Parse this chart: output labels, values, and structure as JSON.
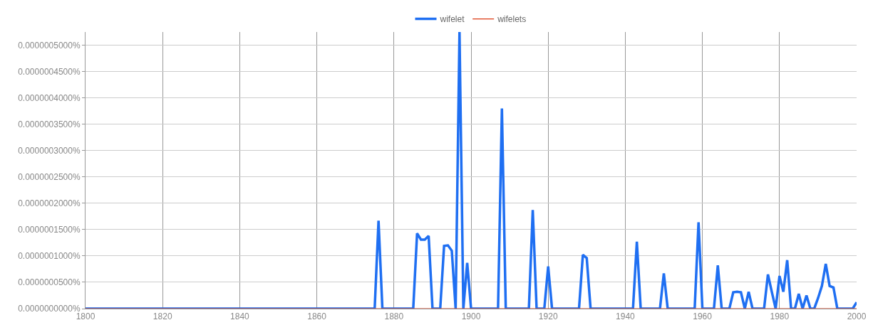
{
  "chart_data": {
    "type": "line",
    "legend": "top",
    "grid": true,
    "marker": "none",
    "line_style": "solid",
    "xlim": [
      1800,
      2000
    ],
    "xticks": [
      1800,
      1820,
      1840,
      1860,
      1880,
      1900,
      1920,
      1940,
      1960,
      1980,
      2000
    ],
    "ylim": [
      0,
      5.25e-07
    ],
    "yticks": [
      {
        "value": 0,
        "label": "0.0000000000%"
      },
      {
        "value": 5e-08,
        "label": "0.0000000500%"
      },
      {
        "value": 1e-07,
        "label": "0.0000001000%"
      },
      {
        "value": 1.5e-07,
        "label": "0.0000001500%"
      },
      {
        "value": 2e-07,
        "label": "0.0000002000%"
      },
      {
        "value": 2.5e-07,
        "label": "0.0000002500%"
      },
      {
        "value": 3e-07,
        "label": "0.0000003000%"
      },
      {
        "value": 3.5e-07,
        "label": "0.0000003500%"
      },
      {
        "value": 4e-07,
        "label": "0.0000004000%"
      },
      {
        "value": 4.5e-07,
        "label": "0.0000004500%"
      },
      {
        "value": 5e-07,
        "label": "0.0000005000%"
      }
    ],
    "series": [
      {
        "name": "wifelet",
        "color": "#1f6ff2",
        "x": [
          1800,
          1875,
          1876,
          1877,
          1885,
          1886,
          1887,
          1888,
          1889,
          1890,
          1892,
          1893,
          1894,
          1895,
          1896,
          1897,
          1898,
          1899,
          1900,
          1907,
          1908,
          1909,
          1915,
          1916,
          1917,
          1919,
          1920,
          1921,
          1928,
          1929,
          1930,
          1931,
          1942,
          1943,
          1944,
          1949,
          1950,
          1951,
          1958,
          1959,
          1960,
          1963,
          1964,
          1965,
          1967,
          1968,
          1969,
          1970,
          1971,
          1972,
          1973,
          1976,
          1977,
          1978,
          1979,
          1980,
          1981,
          1982,
          1983,
          1984,
          1985,
          1986,
          1987,
          1988,
          1989,
          1990,
          1991,
          1992,
          1993,
          1994,
          1995,
          1999,
          2000
        ],
        "values": [
          0,
          0,
          1.67e-07,
          0,
          0,
          1.43e-07,
          1.31e-07,
          1.31e-07,
          1.38e-07,
          0,
          0,
          1.19e-07,
          1.2e-07,
          1.1e-07,
          0,
          5.25e-07,
          0,
          8.7e-08,
          0,
          0,
          3.8e-07,
          0,
          0,
          1.87e-07,
          0,
          0,
          8e-08,
          0,
          0,
          1.02e-07,
          9.6e-08,
          0,
          0,
          1.27e-07,
          0,
          0,
          6.7e-08,
          0,
          0,
          1.64e-07,
          0,
          0,
          8.2e-08,
          0,
          0,
          3.1e-08,
          3.2e-08,
          3.1e-08,
          0,
          3.2e-08,
          0,
          0,
          6.5e-08,
          3.2e-08,
          0,
          6.2e-08,
          3.2e-08,
          9.2e-08,
          0,
          0,
          2.8e-08,
          0,
          2.5e-08,
          0,
          0,
          2e-08,
          4.3e-08,
          8.5e-08,
          4.3e-08,
          4e-08,
          0,
          0,
          1.2e-08
        ]
      },
      {
        "name": "wifelets",
        "color": "#dc3912",
        "x": [
          1800,
          2000
        ],
        "values": [
          0,
          0
        ]
      }
    ]
  }
}
